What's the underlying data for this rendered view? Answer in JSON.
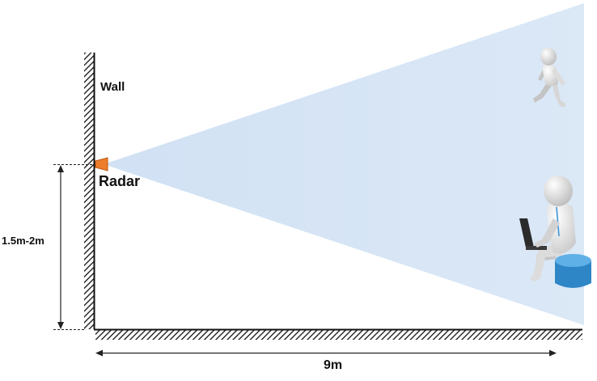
{
  "labels": {
    "wall": "Wall",
    "radar": "Radar",
    "mount_height": "1.5m-2m",
    "coverage_range": "9m"
  },
  "colors": {
    "coverage_cone": "#cfe0f3",
    "radar": "#ee7d2b",
    "radar_stroke": "#b85713",
    "seat": "#3a96d6",
    "hatch": "#111111",
    "dimension": "#222222"
  },
  "icons": {
    "walking_person": "walking-person-icon",
    "seated_person": "person-with-laptop-icon"
  }
}
